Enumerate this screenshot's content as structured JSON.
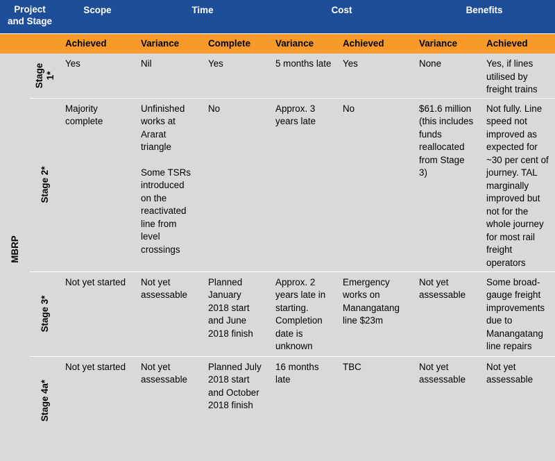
{
  "headers": {
    "project_line1": "Project",
    "project_line2": "and Stage",
    "scope": "Scope",
    "time": "Time",
    "cost": "Cost",
    "benefits": "Benefits"
  },
  "subheaders": {
    "scope_achieved": "Achieved",
    "time_variance": "Variance",
    "time_complete": "Complete",
    "cost_variance": "Variance",
    "cost_achieved": "Achieved",
    "benefits_variance": "Variance",
    "benefits_achieved": "Achieved"
  },
  "project": "MBRP",
  "rows": [
    {
      "stage": "Stage 1*",
      "scope_achieved": "Yes",
      "time_variance": "Nil",
      "time_variance_2": "",
      "time_complete": "Yes",
      "cost_variance": "5 months late",
      "cost_achieved": "Yes",
      "benefits_variance": "None",
      "benefits_achieved": "Yes, if lines utilised by freight trains"
    },
    {
      "stage": "Stage 2*",
      "scope_achieved": "Majority complete",
      "time_variance": "Unfinished works at Ararat triangle",
      "time_variance_2": "Some TSRs introduced on the reactivated line from level crossings",
      "time_complete": "No",
      "cost_variance": "Approx. 3 years late",
      "cost_achieved": "No",
      "benefits_variance": "$61.6 million (this includes funds reallocated from Stage 3)",
      "benefits_achieved": "Not fully. Line speed not improved as expected for ~30 per cent of journey. TAL marginally improved but not for the whole journey for most rail freight operators"
    },
    {
      "stage": "Stage 3*",
      "scope_achieved": "Not yet started",
      "time_variance": "Not yet assessable",
      "time_variance_2": "",
      "time_complete": "Planned January 2018 start and June 2018 finish",
      "cost_variance": "Approx. 2 years late in starting. Completion date is unknown",
      "cost_achieved": "Emergency works on Manangatang line $23m",
      "benefits_variance": "Not yet assessable",
      "benefits_achieved": "Some broad-gauge freight improvements due to Manangatang line repairs"
    },
    {
      "stage": "Stage 4a*",
      "scope_achieved": "Not yet started",
      "time_variance": "Not yet assessable",
      "time_variance_2": "",
      "time_complete": "Planned July 2018 start and October 2018 finish",
      "cost_variance": "16 months late",
      "cost_achieved": "TBC",
      "benefits_variance": "Not yet assessable",
      "benefits_achieved": "Not yet assessable"
    }
  ]
}
